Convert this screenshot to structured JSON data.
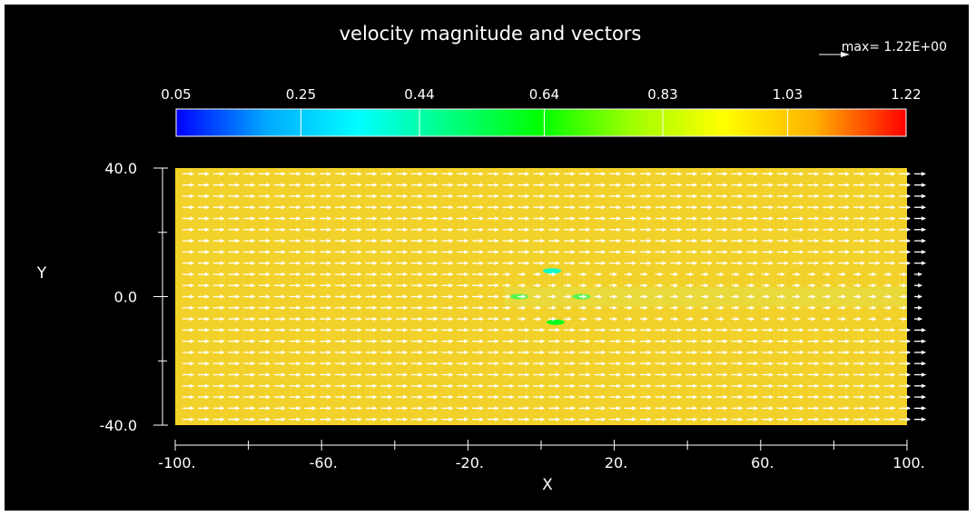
{
  "chart_data": {
    "type": "vector-field",
    "title": "velocity magnitude and vectors",
    "max_label": "max= 1.22E+00",
    "colorbar": {
      "ticks": [
        "0.05",
        "0.25",
        "0.44",
        "0.64",
        "0.83",
        "1.03",
        "1.22"
      ],
      "values": [
        0.05,
        0.25,
        0.44,
        0.64,
        0.83,
        1.03,
        1.22
      ],
      "colors": [
        "#0000ff",
        "#00aaff",
        "#00ffff",
        "#00ff80",
        "#00ff00",
        "#a0ff00",
        "#ffff00",
        "#ffb000",
        "#ff0000"
      ]
    },
    "xlabel": "X",
    "ylabel": "Y",
    "xlim": [
      -100,
      100
    ],
    "ylim": [
      -40,
      40
    ],
    "x_ticks": [
      {
        "value": -100,
        "label": "-100."
      },
      {
        "value": -60,
        "label": "-60."
      },
      {
        "value": -20,
        "label": "-20."
      },
      {
        "value": 20,
        "label": "20."
      },
      {
        "value": 60,
        "label": "60."
      },
      {
        "value": 100,
        "label": "100."
      }
    ],
    "x_minor_ticks": [
      -80,
      -40,
      0,
      40,
      80
    ],
    "y_ticks": [
      {
        "value": 40,
        "label": "40.0"
      },
      {
        "value": 0,
        "label": "0.0"
      },
      {
        "value": -40,
        "label": "-40.0"
      }
    ],
    "y_minor_ticks": [
      20,
      -20
    ],
    "field": {
      "free_stream_magnitude": 1.0,
      "field_color": "#f2d22a",
      "arrow_color": "#ffffff",
      "x_count": 48,
      "y_count": 23,
      "low_speed_spots": [
        {
          "x": 3,
          "y": 8,
          "v": 0.4
        },
        {
          "x": -6,
          "y": 0,
          "v": 0.55
        },
        {
          "x": 11,
          "y": 0,
          "v": 0.55
        },
        {
          "x": 4,
          "y": -8,
          "v": 0.6
        }
      ],
      "wake": {
        "y_center": 0,
        "half_width": 8,
        "min_v": 0.85
      }
    }
  }
}
